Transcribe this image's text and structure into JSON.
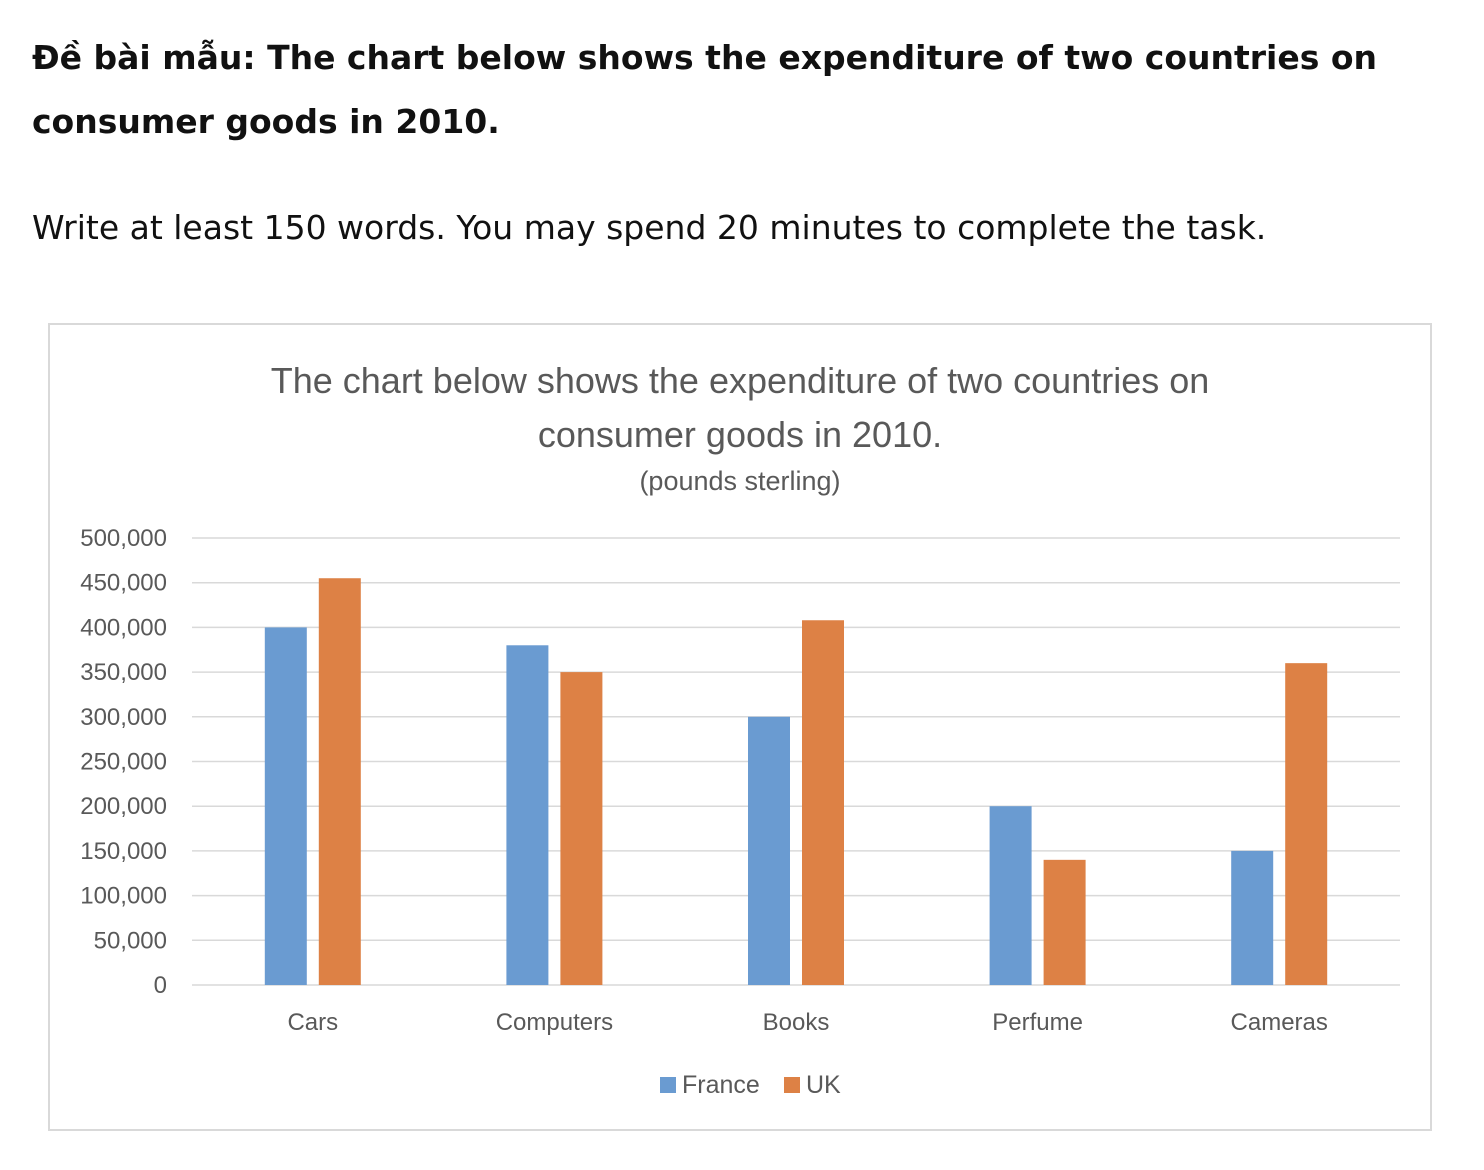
{
  "heading": {
    "prefix": "Đề bài mẫu:",
    "text": "The chart below shows the expenditure of two countries on consumer goods in 2010."
  },
  "instruction": "Write at least 150 words. You may spend 20 minutes to complete the task.",
  "chart_data": {
    "type": "bar",
    "title_line1": "The chart below shows the expenditure of two countries on",
    "title_line2": "consumer goods in 2010.",
    "subtitle": "(pounds sterling)",
    "xlabel": "",
    "ylabel": "",
    "categories": [
      "Cars",
      "Computers",
      "Books",
      "Perfume",
      "Cameras"
    ],
    "series": [
      {
        "name": "France",
        "color": "#6a9bd1",
        "values": [
          400000,
          380000,
          300000,
          200000,
          150000
        ]
      },
      {
        "name": "UK",
        "color": "#dd8145",
        "values": [
          455000,
          350000,
          408000,
          140000,
          360000
        ]
      }
    ],
    "ylim": [
      0,
      500000
    ],
    "yticks": [
      0,
      50000,
      100000,
      150000,
      200000,
      250000,
      300000,
      350000,
      400000,
      450000,
      500000
    ],
    "ytick_labels": [
      "0",
      "50,000",
      "100,000",
      "150,000",
      "200,000",
      "250,000",
      "300,000",
      "350,000",
      "400,000",
      "450,000",
      "500,000"
    ],
    "grid": true,
    "legend_position": "bottom-center"
  }
}
